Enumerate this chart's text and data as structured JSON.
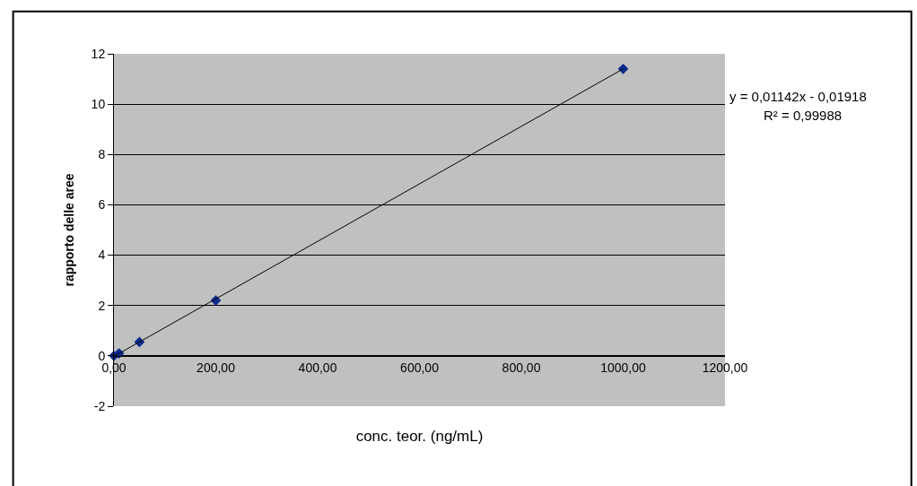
{
  "chart_data": {
    "type": "scatter",
    "xlabel": "conc. teor. (ng/mL)",
    "ylabel": "rapporto delle aree",
    "series": [
      {
        "color": "#0b2b8c",
        "marker": "diamond",
        "x": [
          0,
          10,
          50,
          200,
          1000
        ],
        "values": [
          0,
          0.1,
          0.55,
          2.2,
          11.4
        ]
      },
      {
        "type": "line",
        "color": "#000000",
        "marker": "none",
        "x": [
          0,
          1000
        ],
        "values": [
          -0.02,
          11.4
        ]
      }
    ],
    "xlim": [
      0,
      1200
    ],
    "ylim": [
      -2,
      12
    ],
    "xticks": [
      {
        "value": 0,
        "label": "0,00"
      },
      {
        "value": 200,
        "label": "200,00"
      },
      {
        "value": 400,
        "label": "400,00"
      },
      {
        "value": 600,
        "label": "600,00"
      },
      {
        "value": 800,
        "label": "800,00"
      },
      {
        "value": 1000,
        "label": "1000,00"
      },
      {
        "value": 1200,
        "label": "1200,00"
      }
    ],
    "yticks": [
      -2,
      0,
      2,
      4,
      6,
      8,
      10,
      12
    ],
    "grid": "y",
    "legend": false,
    "annotations": [
      "y = 0,01142x - 0,01918",
      "R² = 0,99988"
    ]
  }
}
